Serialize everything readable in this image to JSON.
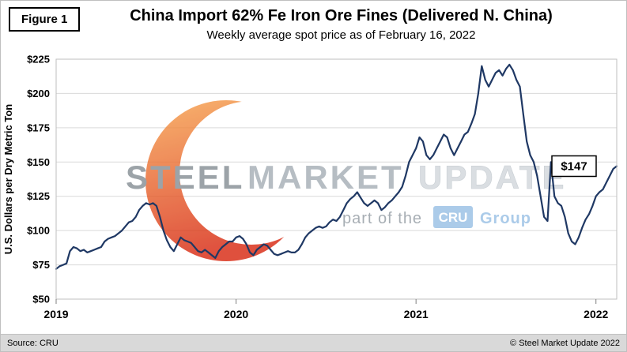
{
  "figure_label": "Figure 1",
  "title": "China Import 62% Fe Iron Ore Fines (Delivered N. China)",
  "subtitle": "Weekly average spot price as of February 16, 2022",
  "footer": {
    "source": "Source: CRU",
    "copyright": "© Steel Market Update 2022"
  },
  "watermark": {
    "word1": "STEEL",
    "word2": "MARKET",
    "word3": "UPDATE",
    "tagline": "part of the",
    "cru": "CRU",
    "group": "Group",
    "accent_color": "#9dc3e6"
  },
  "annotation": {
    "label": "$147",
    "value": 147
  },
  "chart_data": {
    "type": "line",
    "title": "China Import 62% Fe Iron Ore Fines (Delivered N. China)",
    "subtitle": "Weekly average spot price as of February 16, 2022",
    "xlabel": "",
    "ylabel": "U.S. Dollars per Dry Metric Ton",
    "ylim": [
      50,
      225
    ],
    "y_tick_step": 25,
    "y_tick_prefix": "$",
    "grid": "horizontal",
    "legend": "none",
    "line_color": "#1f3864",
    "x_ticks": [
      {
        "index": 0,
        "label": "2019"
      },
      {
        "index": 52,
        "label": "2020"
      },
      {
        "index": 104,
        "label": "2021"
      },
      {
        "index": 156,
        "label": "2022"
      }
    ],
    "series": [
      {
        "name": "Weekly average spot price (USD/dmt)",
        "color": "#1f3864",
        "values": [
          72,
          74,
          75,
          76,
          85,
          88,
          87,
          85,
          86,
          84,
          85,
          86,
          87,
          88,
          92,
          94,
          95,
          96,
          98,
          100,
          103,
          106,
          107,
          110,
          115,
          118,
          120,
          119,
          120,
          118,
          110,
          100,
          93,
          88,
          85,
          90,
          95,
          93,
          92,
          91,
          88,
          85,
          84,
          86,
          84,
          82,
          80,
          85,
          88,
          90,
          92,
          92,
          95,
          96,
          94,
          90,
          84,
          82,
          86,
          88,
          90,
          89,
          86,
          83,
          82,
          83,
          84,
          85,
          84,
          84,
          86,
          90,
          95,
          98,
          100,
          102,
          103,
          102,
          103,
          106,
          108,
          107,
          110,
          115,
          120,
          123,
          125,
          128,
          124,
          120,
          118,
          120,
          122,
          120,
          115,
          117,
          120,
          122,
          125,
          128,
          132,
          140,
          150,
          155,
          160,
          168,
          165,
          155,
          152,
          155,
          160,
          165,
          170,
          168,
          160,
          155,
          160,
          165,
          170,
          172,
          178,
          185,
          200,
          220,
          210,
          205,
          210,
          215,
          217,
          213,
          218,
          221,
          217,
          210,
          205,
          185,
          165,
          155,
          150,
          140,
          125,
          110,
          107,
          150,
          125,
          120,
          118,
          110,
          98,
          92,
          90,
          95,
          102,
          108,
          112,
          118,
          125,
          128,
          130,
          135,
          140,
          145,
          147
        ]
      }
    ]
  }
}
